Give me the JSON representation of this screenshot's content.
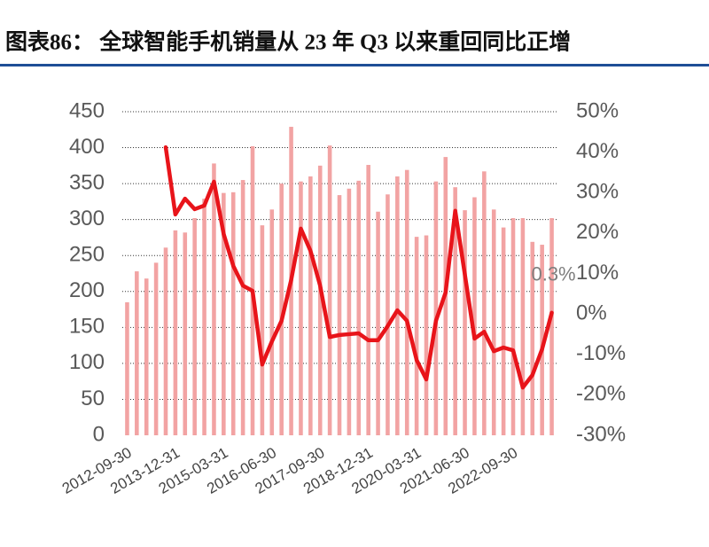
{
  "chart_data": {
    "type": "bar-line",
    "title": "图表86： 全球智能手机销量从 23 年 Q3 以来重回同比正增",
    "categories": [
      "2012-09-30",
      null,
      null,
      null,
      null,
      "2013-12-31",
      null,
      null,
      null,
      null,
      "2015-03-31",
      null,
      null,
      null,
      null,
      "2016-06-30",
      null,
      null,
      null,
      null,
      "2017-09-30",
      null,
      null,
      null,
      null,
      "2018-12-31",
      null,
      null,
      null,
      null,
      "2020-03-31",
      null,
      null,
      null,
      null,
      "2021-06-30",
      null,
      null,
      null,
      null,
      "2022-09-30",
      null,
      null,
      null,
      null
    ],
    "series": [
      {
        "type": "bar",
        "color": "#f2a3a3",
        "values": [
          185,
          228,
          218,
          240,
          261,
          285,
          282,
          302,
          329,
          378,
          337,
          338,
          355,
          402,
          292,
          314,
          350,
          429,
          353,
          360,
          375,
          403,
          334,
          343,
          354,
          376,
          311,
          335,
          360,
          369,
          276,
          278,
          353,
          387,
          345,
          313,
          331,
          367,
          314,
          289,
          302,
          302,
          269,
          265,
          302
        ]
      },
      {
        "type": "line",
        "axis": "y2",
        "color": "#e8141a",
        "values": [
          null,
          null,
          null,
          null,
          41.2,
          24.6,
          28.5,
          25.9,
          26.8,
          32.7,
          19.8,
          11.9,
          7.0,
          5.7,
          -12.5,
          -6.8,
          -1.7,
          8.4,
          21.1,
          15.6,
          7.0,
          -5.7,
          -5.2,
          -5.0,
          -4.8,
          -6.5,
          -6.5,
          -3.0,
          0.9,
          -1.7,
          -11.4,
          -16.2,
          -1.7,
          5.3,
          25.5,
          9.7,
          -6.1,
          -4.4,
          -9.2,
          -8.3,
          -9.0,
          -18.2,
          -15.1,
          -8.7,
          0.3
        ],
        "value_labels": [
          null,
          null,
          null,
          null,
          null,
          null,
          null,
          null,
          null,
          null,
          null,
          null,
          null,
          null,
          null,
          null,
          null,
          null,
          null,
          null,
          null,
          null,
          null,
          null,
          null,
          null,
          null,
          null,
          null,
          null,
          null,
          null,
          null,
          null,
          null,
          null,
          null,
          null,
          null,
          null,
          null,
          null,
          null,
          null,
          "0.3%"
        ]
      }
    ],
    "ylim": [
      0,
      450
    ],
    "yticks": [
      0,
      50,
      100,
      150,
      200,
      250,
      300,
      350,
      400,
      450
    ],
    "y2lim": [
      -30,
      50
    ],
    "y2ticks": [
      {
        "value": -30,
        "label": "-30%"
      },
      {
        "value": -20,
        "label": "-20%"
      },
      {
        "value": -10,
        "label": "-10%"
      },
      {
        "value": 0,
        "label": "0%"
      },
      {
        "value": 10,
        "label": "10%"
      },
      {
        "value": 20,
        "label": "20%"
      },
      {
        "value": 30,
        "label": "30%"
      },
      {
        "value": 40,
        "label": "40%"
      },
      {
        "value": 50,
        "label": "50%"
      }
    ],
    "grid": true
  }
}
